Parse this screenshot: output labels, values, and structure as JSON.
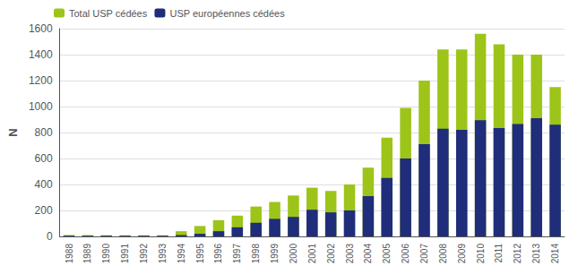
{
  "chart_data": {
    "type": "bar",
    "y_label": "N",
    "categories": [
      "1988",
      "1989",
      "1990",
      "1991",
      "1992",
      "1993",
      "1994",
      "1995",
      "1996",
      "1997",
      "1998",
      "1999",
      "2000",
      "2001",
      "2002",
      "2003",
      "2004",
      "2005",
      "2006",
      "2007",
      "2008",
      "2009",
      "2010",
      "2011",
      "2012",
      "2013",
      "2014"
    ],
    "series": [
      {
        "name": "Total USP cédées",
        "color": "#9dc419",
        "values": [
          10,
          10,
          8,
          8,
          8,
          8,
          40,
          80,
          125,
          160,
          230,
          265,
          315,
          375,
          350,
          400,
          530,
          760,
          990,
          1200,
          1440,
          1440,
          1560,
          1480,
          1400,
          1400,
          1150
        ]
      },
      {
        "name": "USP européennes cédées",
        "color": "#1f2d7b",
        "values": [
          5,
          5,
          5,
          5,
          5,
          5,
          10,
          20,
          40,
          70,
          105,
          135,
          150,
          205,
          185,
          200,
          310,
          450,
          600,
          710,
          830,
          820,
          895,
          835,
          865,
          910,
          860
        ]
      }
    ],
    "ylim": [
      0,
      1600
    ],
    "yticks": [
      0,
      200,
      400,
      600,
      800,
      1000,
      1200,
      1400,
      1600
    ],
    "grid": true,
    "legend": "upper left",
    "stacked": false
  }
}
